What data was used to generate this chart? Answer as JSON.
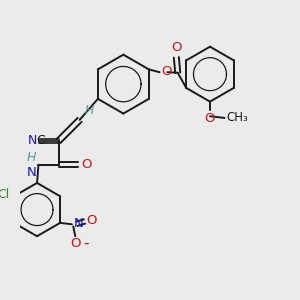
{
  "bg_color": "#ebebeb",
  "bond_color": "#1a1a1a",
  "nitrogen_color": "#1414cc",
  "oxygen_color": "#cc1414",
  "chlorine_color": "#3a8a3a",
  "h_color": "#5a9a9a",
  "figsize": [
    3.0,
    3.0
  ],
  "dpi": 100,
  "xlim": [
    0,
    10
  ],
  "ylim": [
    0,
    10
  ]
}
